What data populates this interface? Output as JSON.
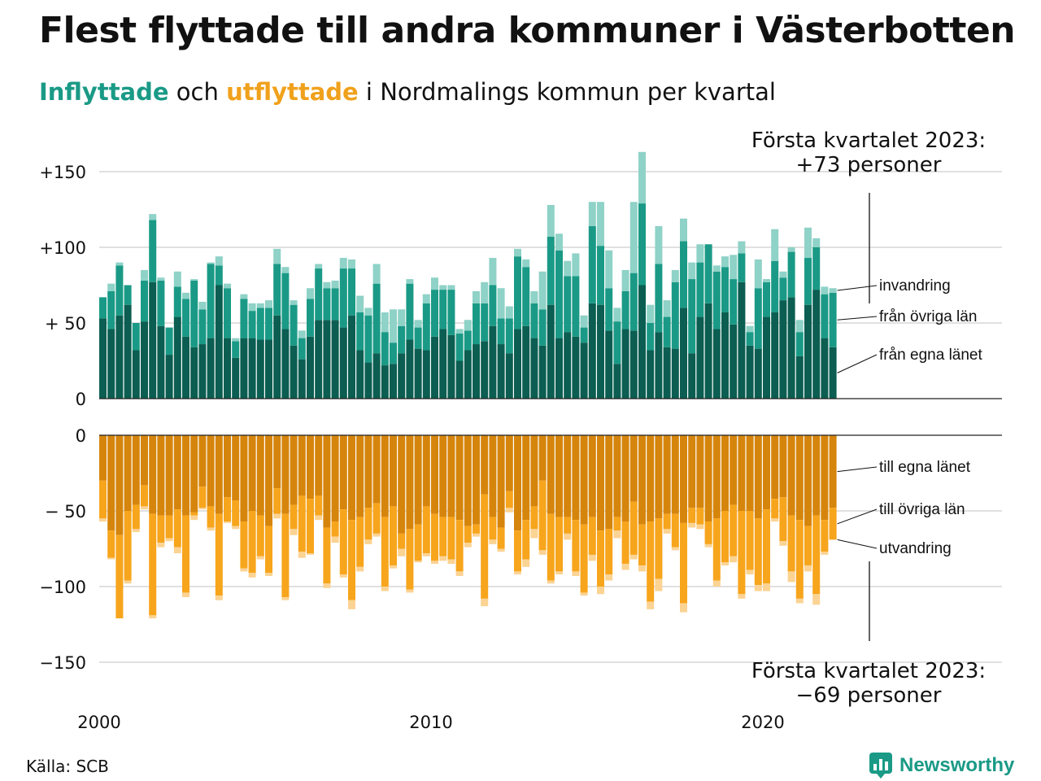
{
  "title": "Flest flyttade till andra kommuner i Västerbotten",
  "subtitle": {
    "in_word": "Inflyttade",
    "mid": " och ",
    "out_word": "utflyttade",
    "rest": " i Nordmalings kommun per kvartal"
  },
  "source": "Källa: SCB",
  "logo_text": "Newsworthy",
  "colors": {
    "in_egna": "#0b5e51",
    "in_ovriga": "#1a9a86",
    "in_invandring": "#8fd2c7",
    "out_egna": "#d6850c",
    "out_ovriga": "#f7a51c",
    "out_utvandring": "#fbd393",
    "grid": "#e0e0e0"
  },
  "chart_data": [
    {
      "type": "bar",
      "stacked": true,
      "start_year": 2000,
      "period": "quarter",
      "ylim": [
        0,
        150
      ],
      "yticks": [
        0,
        50,
        100,
        150
      ],
      "ytick_labels": [
        "0",
        "+ 50",
        "+100",
        "+150"
      ],
      "annotation": {
        "line1": "Första kvartalet 2023:",
        "line2": "+73 personer"
      },
      "series": [
        {
          "name": "från egna länet",
          "values": [
            53,
            46,
            55,
            62,
            32,
            51,
            77,
            48,
            29,
            54,
            41,
            34,
            36,
            40,
            75,
            40,
            27,
            40,
            40,
            39,
            39,
            55,
            46,
            35,
            26,
            41,
            52,
            52,
            52,
            47,
            55,
            32,
            24,
            30,
            22,
            23,
            30,
            39,
            33,
            32,
            41,
            46,
            42,
            25,
            32,
            36,
            38,
            48,
            36,
            30,
            46,
            48,
            40,
            35,
            62,
            40,
            44,
            41,
            37,
            63,
            62,
            45,
            23,
            46,
            45,
            75,
            32,
            44,
            34,
            33,
            60,
            30,
            54,
            63,
            46,
            57,
            49,
            77,
            35,
            33,
            54,
            57,
            65,
            67,
            28,
            62,
            72,
            40,
            34
          ]
        },
        {
          "name": "från övriga län",
          "values": [
            14,
            25,
            33,
            13,
            18,
            27,
            41,
            30,
            18,
            20,
            25,
            44,
            23,
            49,
            13,
            33,
            11,
            26,
            18,
            21,
            21,
            34,
            37,
            27,
            14,
            25,
            34,
            21,
            21,
            39,
            31,
            25,
            31,
            46,
            22,
            14,
            18,
            37,
            14,
            31,
            31,
            26,
            30,
            18,
            13,
            27,
            25,
            27,
            17,
            23,
            48,
            39,
            23,
            24,
            45,
            58,
            37,
            40,
            10,
            51,
            39,
            28,
            28,
            25,
            38,
            54,
            18,
            45,
            20,
            44,
            44,
            49,
            36,
            39,
            38,
            30,
            30,
            19,
            9,
            40,
            23,
            34,
            15,
            30,
            16,
            31,
            28,
            29,
            36
          ]
        },
        {
          "name": "invandring",
          "values": [
            0,
            5,
            2,
            0,
            0,
            7,
            4,
            2,
            0,
            10,
            4,
            1,
            5,
            1,
            6,
            3,
            2,
            3,
            5,
            3,
            5,
            10,
            4,
            3,
            5,
            7,
            3,
            4,
            5,
            7,
            6,
            11,
            5,
            13,
            13,
            22,
            11,
            3,
            5,
            6,
            8,
            3,
            3,
            3,
            7,
            8,
            14,
            18,
            20,
            8,
            5,
            5,
            8,
            25,
            21,
            11,
            10,
            15,
            8,
            16,
            29,
            25,
            9,
            14,
            47,
            34,
            12,
            25,
            11,
            8,
            15,
            11,
            12,
            0,
            4,
            7,
            16,
            8,
            4,
            19,
            2,
            21,
            4,
            3,
            8,
            20,
            6,
            5,
            3
          ]
        }
      ]
    },
    {
      "type": "bar",
      "stacked": true,
      "start_year": 2000,
      "period": "quarter",
      "ylim": [
        -150,
        0
      ],
      "yticks": [
        0,
        -50,
        -100,
        -150
      ],
      "ytick_labels": [
        "0",
        "− 50",
        "−100",
        "−150"
      ],
      "xticks": [
        2000,
        2010,
        2020
      ],
      "annotation": {
        "line1": "Första kvartalet 2023:",
        "line2": "−69 personer"
      },
      "series": [
        {
          "name": "till egna länet",
          "values": [
            -30,
            -63,
            -66,
            -50,
            -46,
            -33,
            -52,
            -53,
            -53,
            -49,
            -53,
            -51,
            -34,
            -47,
            -52,
            -41,
            -43,
            -57,
            -50,
            -53,
            -60,
            -35,
            -52,
            -46,
            -40,
            -42,
            -40,
            -61,
            -57,
            -49,
            -56,
            -54,
            -48,
            -45,
            -54,
            -47,
            -65,
            -62,
            -59,
            -47,
            -52,
            -54,
            -54,
            -56,
            -60,
            -59,
            -39,
            -54,
            -61,
            -37,
            -63,
            -56,
            -47,
            -30,
            -52,
            -54,
            -54,
            -56,
            -59,
            -54,
            -63,
            -62,
            -54,
            -57,
            -44,
            -59,
            -57,
            -55,
            -52,
            -52,
            -58,
            -48,
            -48,
            -57,
            -55,
            -50,
            -46,
            -50,
            -50,
            -55,
            -49,
            -42,
            -41,
            -53,
            -56,
            -60,
            -53,
            -56,
            -48
          ]
        },
        {
          "name": "till övriga län",
          "values": [
            -25,
            -18,
            -55,
            -46,
            -16,
            -14,
            -67,
            -18,
            -15,
            -25,
            -51,
            -2,
            -14,
            -14,
            -54,
            -16,
            -17,
            -31,
            -41,
            -27,
            -31,
            -17,
            -55,
            -16,
            -37,
            -36,
            -13,
            -37,
            -10,
            -43,
            -53,
            -33,
            -21,
            -20,
            -46,
            -39,
            -10,
            -40,
            -24,
            -31,
            -31,
            -26,
            -28,
            -34,
            -11,
            -6,
            -69,
            -15,
            -14,
            -11,
            -27,
            -26,
            -15,
            -46,
            -44,
            -36,
            -11,
            -34,
            -45,
            -25,
            -37,
            -30,
            -9,
            -28,
            -35,
            -27,
            -53,
            -40,
            -10,
            -22,
            -53,
            -10,
            -11,
            -15,
            -41,
            -34,
            -34,
            -55,
            -39,
            -44,
            -49,
            -13,
            -29,
            -37,
            -52,
            -26,
            -52,
            -21,
            -21
          ]
        },
        {
          "name": "utvandring",
          "values": [
            -2,
            -1,
            0,
            -2,
            -2,
            -2,
            -2,
            -3,
            -2,
            -4,
            -3,
            -3,
            -1,
            -2,
            -3,
            -1,
            -2,
            -2,
            -3,
            -2,
            -2,
            -3,
            -2,
            -4,
            -4,
            -1,
            -3,
            -3,
            -4,
            -2,
            -6,
            -3,
            -3,
            -2,
            -3,
            -2,
            -5,
            -2,
            -1,
            -2,
            -2,
            -3,
            -3,
            -3,
            -3,
            -2,
            -5,
            -3,
            -2,
            -3,
            -2,
            -5,
            -6,
            -3,
            -2,
            -2,
            -4,
            -3,
            -2,
            -4,
            -5,
            -4,
            -5,
            -4,
            -3,
            -4,
            -5,
            -8,
            -3,
            -2,
            -6,
            -3,
            -3,
            -2,
            -4,
            -2,
            -4,
            -3,
            -3,
            -4,
            -5,
            -2,
            -3,
            -7,
            -3,
            -4,
            -7,
            -2,
            0
          ]
        }
      ]
    }
  ]
}
